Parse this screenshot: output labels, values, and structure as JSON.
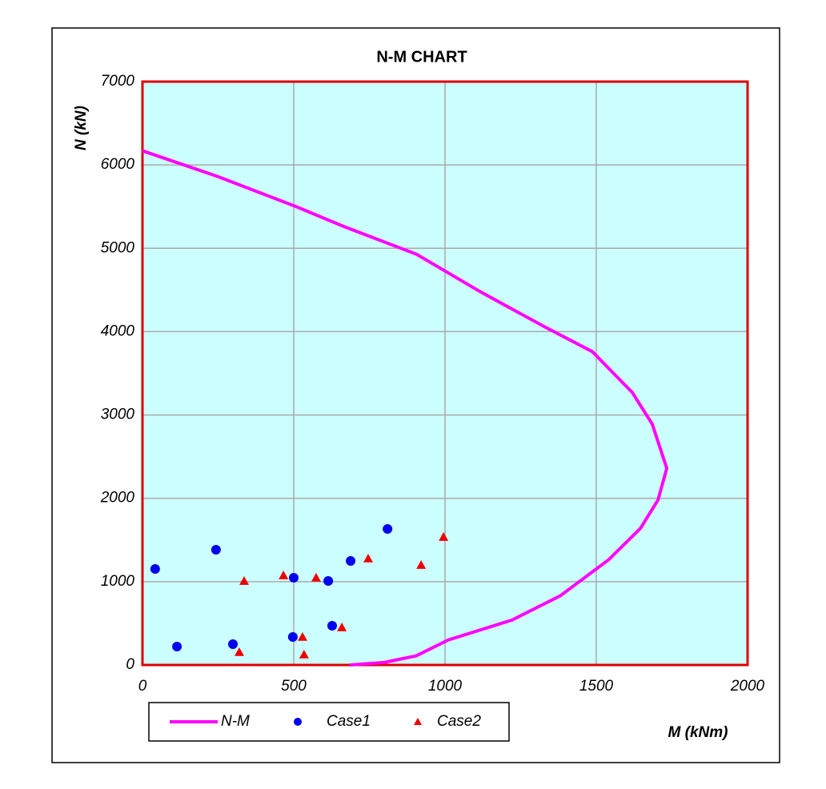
{
  "chart_data": {
    "type": "scatter",
    "title": "N-M CHART",
    "x_label": "M (kNm)",
    "y_label": "N (kN)",
    "xlim": [
      0,
      2000
    ],
    "xticks": [
      0,
      500,
      1000,
      1500,
      2000
    ],
    "ylim": [
      0,
      7000
    ],
    "yticks": [
      0,
      1000,
      2000,
      3000,
      4000,
      5000,
      6000,
      7000
    ],
    "grid": true,
    "plot_background": "#ccffff",
    "frame_color": "#dd0000",
    "legend": "bottom",
    "series": [
      {
        "name": "N-M",
        "mark": "line",
        "color": "#ff00ff",
        "x": [
          0,
          250,
          508,
          667,
          905,
          1116,
          1328,
          1487,
          1619,
          1685,
          1733,
          1704,
          1646,
          1540,
          1381,
          1222,
          1011,
          905,
          799,
          685
        ],
        "y": [
          6170,
          5860,
          5500,
          5260,
          4930,
          4480,
          4060,
          3760,
          3270,
          2890,
          2360,
          1980,
          1640,
          1260,
          830,
          540,
          300,
          110,
          30,
          0
        ]
      },
      {
        "name": "Case1",
        "mark": "circle",
        "color": "#0000ee",
        "x": [
          42,
          243,
          114,
          299,
          500,
          614,
          497,
          627,
          688,
          810
        ],
        "y": [
          1152,
          1383,
          221,
          250,
          1047,
          1008,
          336,
          471,
          1248,
          1632
        ]
      },
      {
        "name": "Case2",
        "mark": "triangle",
        "color": "#ee0000",
        "x": [
          336,
          466,
          574,
          529,
          534,
          320,
          659,
          746,
          921,
          995
        ],
        "y": [
          1008,
          1075,
          1047,
          336,
          125,
          154,
          451,
          1277,
          1200,
          1536
        ]
      }
    ]
  }
}
